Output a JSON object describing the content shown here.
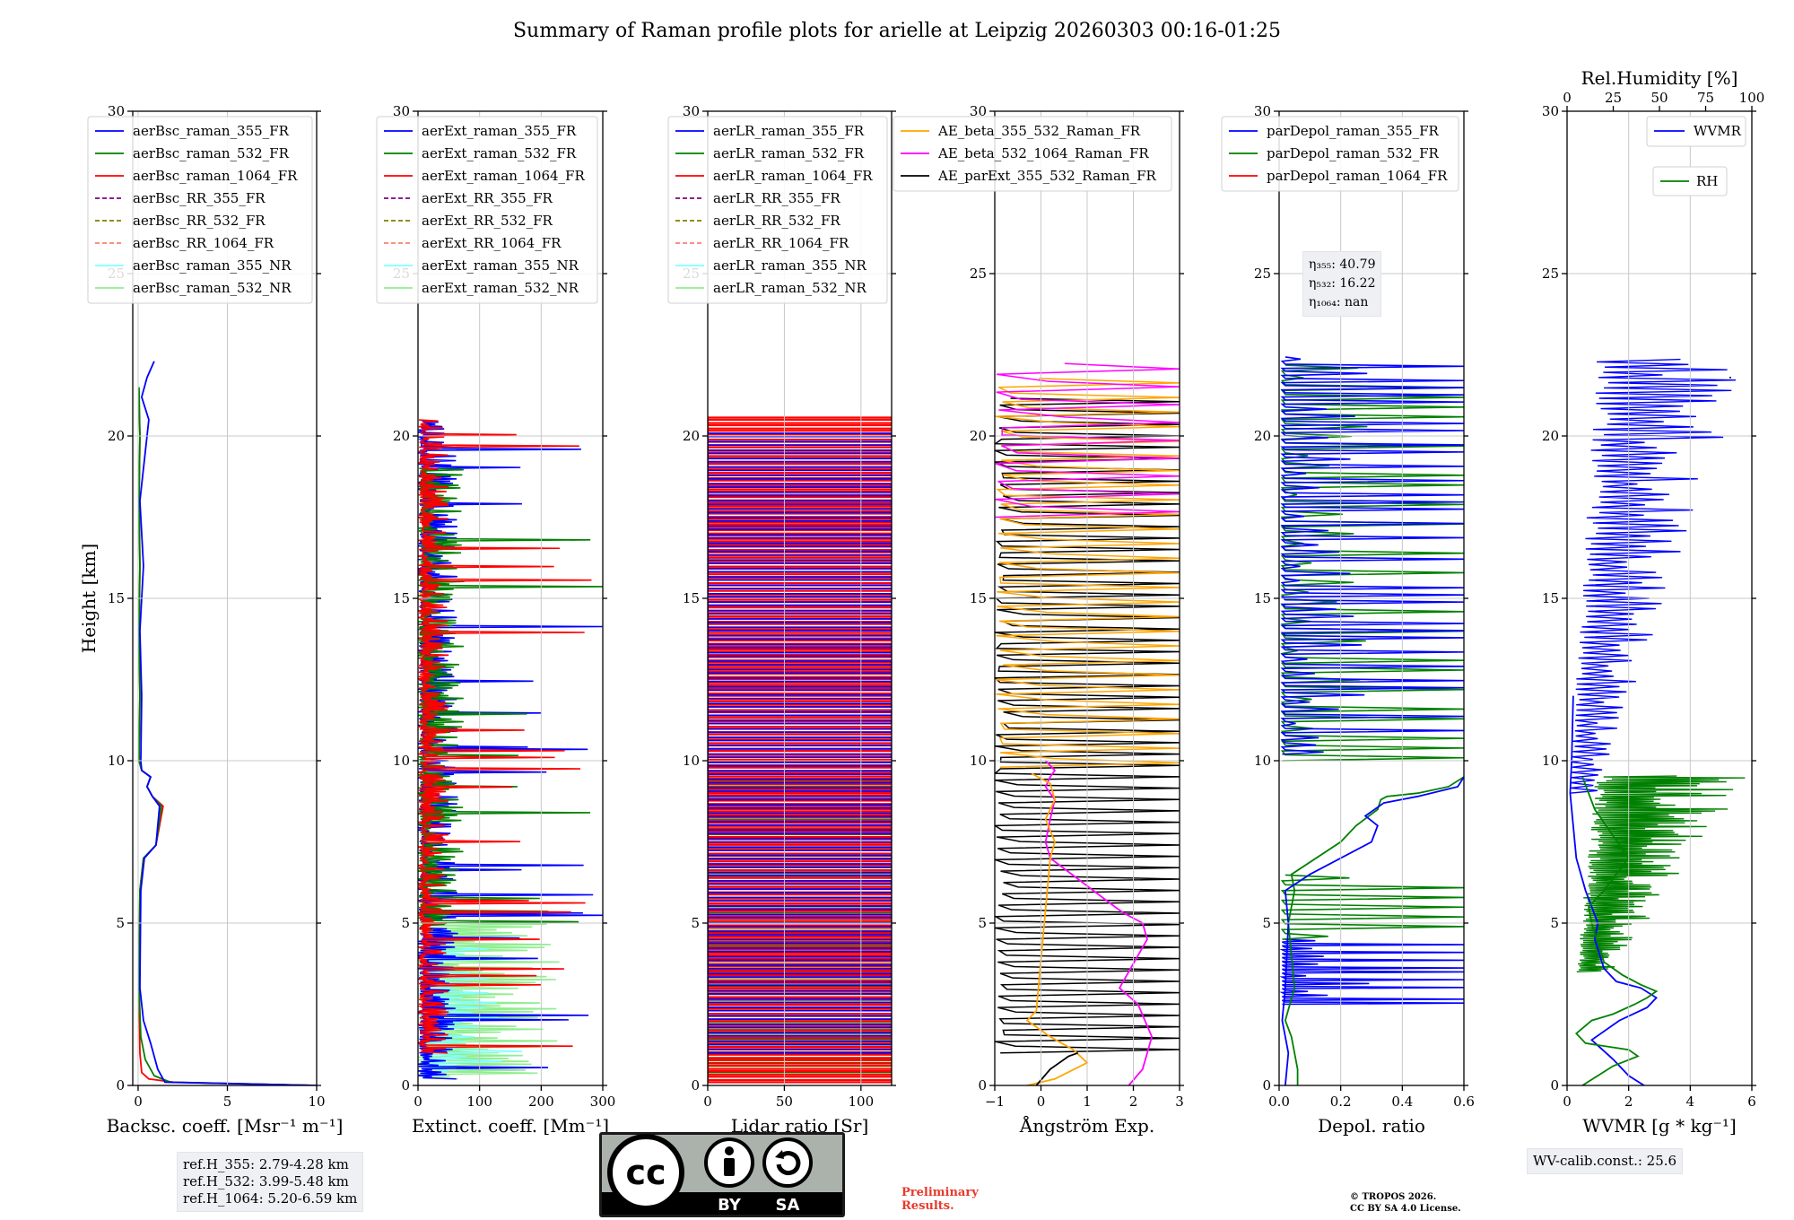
{
  "title": "Summary of Raman profile plots for arielle at Leipzig 20260303 00:16-01:25",
  "ylabel": "Height [km]",
  "colors": {
    "blue": "#0000ff",
    "green": "#008000",
    "red": "#ff0000",
    "purple": "#800080",
    "olive": "#808000",
    "salmon": "#fa8072",
    "cyan": "#80ffff",
    "lightgreen": "#90ee90",
    "orange": "#ffa500",
    "magenta": "#ff00ff",
    "black": "#000000"
  },
  "chart_data": [
    {
      "type": "line",
      "xlabel": "Backsc. coeff. [Msr⁻¹ m⁻¹]",
      "xlim": [
        -0.3,
        10
      ],
      "ylim": [
        0,
        30
      ],
      "xticks": [
        0,
        5,
        10
      ],
      "yticks": [
        0,
        5,
        10,
        15,
        20,
        25,
        30
      ],
      "legend": [
        {
          "name": "aerBsc_raman_355_FR",
          "color": "blue",
          "style": "solid"
        },
        {
          "name": "aerBsc_raman_532_FR",
          "color": "green",
          "style": "solid"
        },
        {
          "name": "aerBsc_raman_1064_FR",
          "color": "red",
          "style": "solid"
        },
        {
          "name": "aerBsc_RR_355_FR",
          "color": "purple",
          "style": "dashed"
        },
        {
          "name": "aerBsc_RR_532_FR",
          "color": "olive",
          "style": "dashed"
        },
        {
          "name": "aerBsc_RR_1064_FR",
          "color": "salmon",
          "style": "dashed"
        },
        {
          "name": "aerBsc_raman_355_NR",
          "color": "cyan",
          "style": "solid"
        },
        {
          "name": "aerBsc_raman_532_NR",
          "color": "lightgreen",
          "style": "solid"
        }
      ],
      "series": [
        {
          "name": "aerBsc_raman_1064_FR",
          "color": "red",
          "x": [
            10,
            2,
            0.6,
            0.2,
            0.1,
            0.05,
            0.1,
            0.3,
            1.0,
            1.4,
            0.8,
            0.5,
            0.7,
            0.2,
            0.05,
            0.1,
            0.05,
            0.1,
            0.05,
            0.1,
            0.05
          ],
          "y": [
            0,
            0.1,
            0.2,
            0.4,
            1,
            3,
            6,
            7,
            7.4,
            8.6,
            8.9,
            9.2,
            9.5,
            9.7,
            10,
            12,
            14,
            16,
            18,
            20,
            21
          ]
        },
        {
          "name": "aerBsc_raman_532_FR",
          "color": "green",
          "x": [
            10,
            1.8,
            0.9,
            0.4,
            0.15,
            0.05,
            0.1,
            0.3,
            1.0,
            1.3,
            0.8,
            0.5,
            0.7,
            0.2,
            0.05,
            0.1,
            0.05,
            0.1,
            0.05,
            0.1,
            0.05
          ],
          "y": [
            0,
            0.1,
            0.3,
            0.8,
            1.5,
            3,
            6,
            7,
            7.4,
            8.6,
            8.9,
            9.2,
            9.5,
            9.7,
            10,
            12,
            14,
            16,
            18,
            20,
            21.5
          ]
        },
        {
          "name": "aerBsc_raman_355_FR",
          "color": "blue",
          "x": [
            10,
            1.5,
            1.1,
            0.7,
            0.3,
            0.1,
            0.15,
            0.35,
            1.0,
            1.2,
            0.8,
            0.5,
            0.7,
            0.2,
            0.15,
            0.2,
            0.1,
            0.3,
            0.1,
            0.4,
            0.6,
            0.2,
            0.5,
            0.9
          ],
          "y": [
            0,
            0.1,
            0.5,
            1.3,
            2,
            3,
            6,
            7,
            7.4,
            8.6,
            8.9,
            9.2,
            9.5,
            9.7,
            10,
            12,
            14,
            16,
            18,
            19.5,
            20.5,
            21.2,
            21.8,
            22.3
          ]
        }
      ]
    },
    {
      "type": "line",
      "xlabel": "Extinct. coeff. [Mm⁻¹]",
      "xlim": [
        0,
        300
      ],
      "ylim": [
        0,
        30
      ],
      "xticks": [
        0,
        100,
        200,
        300
      ],
      "yticks": [
        0,
        5,
        10,
        15,
        20,
        25,
        30
      ],
      "legend": [
        {
          "name": "aerExt_raman_355_FR",
          "color": "blue",
          "style": "solid"
        },
        {
          "name": "aerExt_raman_532_FR",
          "color": "green",
          "style": "solid"
        },
        {
          "name": "aerExt_raman_1064_FR",
          "color": "red",
          "style": "solid"
        },
        {
          "name": "aerExt_RR_355_FR",
          "color": "purple",
          "style": "dashed"
        },
        {
          "name": "aerExt_RR_532_FR",
          "color": "olive",
          "style": "dashed"
        },
        {
          "name": "aerExt_RR_1064_FR",
          "color": "salmon",
          "style": "dashed"
        },
        {
          "name": "aerExt_raman_355_NR",
          "color": "cyan",
          "style": "solid"
        },
        {
          "name": "aerExt_raman_532_NR",
          "color": "lightgreen",
          "style": "solid"
        }
      ]
    },
    {
      "type": "line",
      "xlabel": "Lidar ratio [Sr]",
      "xlim": [
        0,
        120
      ],
      "ylim": [
        0,
        30
      ],
      "xticks": [
        0,
        50,
        100
      ],
      "yticks": [
        0,
        5,
        10,
        15,
        20,
        25,
        30
      ],
      "legend": [
        {
          "name": "aerLR_raman_355_FR",
          "color": "blue",
          "style": "solid"
        },
        {
          "name": "aerLR_raman_532_FR",
          "color": "green",
          "style": "solid"
        },
        {
          "name": "aerLR_raman_1064_FR",
          "color": "red",
          "style": "solid"
        },
        {
          "name": "aerLR_RR_355_FR",
          "color": "purple",
          "style": "dashed"
        },
        {
          "name": "aerLR_RR_532_FR",
          "color": "olive",
          "style": "dashed"
        },
        {
          "name": "aerLR_RR_1064_FR",
          "color": "salmon",
          "style": "dashed"
        },
        {
          "name": "aerLR_raman_355_NR",
          "color": "cyan",
          "style": "solid"
        },
        {
          "name": "aerLR_raman_532_NR",
          "color": "lightgreen",
          "style": "solid"
        }
      ]
    },
    {
      "type": "line",
      "xlabel": "Ångström Exp.",
      "xlim": [
        -1,
        3
      ],
      "ylim": [
        0,
        30
      ],
      "xticks": [
        -1,
        0,
        1,
        2,
        3
      ],
      "yticks": [
        0,
        5,
        10,
        15,
        20,
        25,
        30
      ],
      "legend": [
        {
          "name": "AE_beta_355_532_Raman_FR",
          "color": "orange",
          "style": "solid"
        },
        {
          "name": "AE_beta_532_1064_Raman_FR",
          "color": "magenta",
          "style": "solid"
        },
        {
          "name": "AE_parExt_355_532_Raman_FR",
          "color": "black",
          "style": "solid"
        }
      ],
      "series": [
        {
          "name": "AE_beta_532_1064_Raman_FR",
          "color": "magenta",
          "x": [
            1.9,
            2.2,
            2.4,
            2.1,
            1.7,
            1.9,
            2.1,
            2.3,
            2.2,
            1.8,
            1.6,
            0.2,
            0.1,
            0.2,
            0.3,
            0.1,
            0.2,
            0.3,
            0.1
          ],
          "y": [
            0,
            0.5,
            1.5,
            2.5,
            3,
            3.5,
            4,
            4.5,
            5,
            5.3,
            5.5,
            7,
            7.5,
            8.2,
            8.8,
            9.2,
            9.5,
            9.7,
            10
          ]
        },
        {
          "name": "AE_beta_355_532_Raman_FR",
          "color": "orange",
          "x": [
            -0.3,
            0.3,
            1.0,
            0.7,
            0.2,
            -0.3,
            -0.1,
            0.2,
            0.3,
            0.1,
            0.3,
            0.2,
            -0.2
          ],
          "y": [
            0,
            0.2,
            0.7,
            1.1,
            1.5,
            2.0,
            2.3,
            7.0,
            7.5,
            8.2,
            8.8,
            9.3,
            9.6
          ]
        },
        {
          "name": "AE_parExt_355_532_Raman_FR",
          "color": "black",
          "x": [
            -0.1,
            0.2,
            0.6,
            0.8
          ],
          "y": [
            0,
            0.5,
            0.9,
            1.0
          ]
        }
      ]
    },
    {
      "type": "line",
      "xlabel": "Depol. ratio",
      "xlim": [
        0,
        0.6
      ],
      "ylim": [
        0,
        30
      ],
      "xticks": [
        0.0,
        0.2,
        0.4,
        0.6
      ],
      "yticks": [
        0,
        5,
        10,
        15,
        20,
        25,
        30
      ],
      "legend": [
        {
          "name": "parDepol_raman_355_FR",
          "color": "blue",
          "style": "solid"
        },
        {
          "name": "parDepol_raman_532_FR",
          "color": "green",
          "style": "solid"
        },
        {
          "name": "parDepol_raman_1064_FR",
          "color": "red",
          "style": "solid"
        }
      ],
      "series": [
        {
          "name": "parDepol_raman_532_FR",
          "color": "green",
          "x": [
            0.06,
            0.06,
            0.05,
            0.04,
            0.02,
            0.05,
            0.04,
            0.03,
            0.05,
            0.04,
            0.2,
            0.25,
            0.32,
            0.33,
            0.35,
            0.45,
            0.55,
            0.6
          ],
          "y": [
            0,
            0.5,
            1,
            1.5,
            2,
            3,
            4,
            5,
            6,
            6.5,
            7.5,
            8.0,
            8.5,
            8.8,
            8.9,
            9.0,
            9.2,
            9.5
          ]
        },
        {
          "name": "parDepol_raman_355_FR",
          "color": "blue",
          "x": [
            0.02,
            0.03,
            0.01,
            0.02,
            0.03,
            0.02,
            0.1,
            0.3,
            0.32,
            0.28,
            0.34,
            0.45,
            0.58,
            0.6
          ],
          "y": [
            0,
            1,
            2,
            3,
            5,
            6,
            6.5,
            7.5,
            8,
            8.3,
            8.7,
            8.9,
            9.2,
            9.5
          ]
        }
      ],
      "annotation": [
        "η₃₅₅: 40.79",
        "η₅₃₂: 16.22",
        "η₁₀₆₄: nan"
      ]
    },
    {
      "type": "line",
      "xlabel": "WVMR [g * kg⁻¹]",
      "xlim": [
        0,
        6
      ],
      "ylim": [
        0,
        30
      ],
      "xticks": [
        0,
        2,
        4,
        6
      ],
      "yticks": [
        0,
        5,
        10,
        15,
        20,
        25,
        30
      ],
      "top_xlabel": "Rel.Humidity [%]",
      "top_xlim": [
        0,
        100
      ],
      "top_xticks": [
        0,
        25,
        50,
        75,
        100
      ],
      "legend": [
        {
          "name": "WVMR",
          "color": "blue",
          "style": "solid"
        },
        {
          "name": "RH",
          "color": "green",
          "style": "solid"
        }
      ],
      "series": [
        {
          "name": "WVMR",
          "color": "blue",
          "x": [
            2.5,
            2.0,
            1.5,
            0.8,
            1.7,
            2.6,
            2.9,
            2.4,
            1.6,
            1.2,
            0.9,
            1.0,
            0.6,
            0.3,
            0.2,
            0.1,
            0.15,
            0.2
          ],
          "y": [
            0,
            0.3,
            0.8,
            1.4,
            2.0,
            2.4,
            2.7,
            3.0,
            3.2,
            3.6,
            4.5,
            5.0,
            6.0,
            7.0,
            8.0,
            9.0,
            10.0,
            12.0
          ]
        },
        {
          "name": "RH",
          "color": "green",
          "x": [
            0.5,
            1.0,
            1.5,
            2.3,
            2.0,
            0.6,
            0.3,
            0.8,
            1.5,
            2.2,
            2.6,
            2.9,
            2.4,
            1.8,
            1.2,
            1.0,
            0.8,
            0.7,
            1.2,
            2.0,
            0.9,
            0.5
          ],
          "y": [
            0,
            0.3,
            0.6,
            0.9,
            1.1,
            1.3,
            1.6,
            2.0,
            2.2,
            2.5,
            2.7,
            2.9,
            3.1,
            3.4,
            3.8,
            4.4,
            5.0,
            5.5,
            6.0,
            7.0,
            8.5,
            9.5
          ]
        }
      ],
      "calib": "WV-calib.const.: 25.6"
    }
  ],
  "refbox": [
    "ref.H_355: 2.79-4.28 km",
    "ref.H_532: 3.99-5.48 km",
    "ref.H_1064: 5.20-6.59 km"
  ],
  "license": {
    "cc": "cc",
    "by": "BY",
    "sa": "SA"
  },
  "preliminary": [
    "Preliminary",
    "Results."
  ],
  "copyright": [
    "© TROPOS 2026.",
    "CC BY SA 4.0 License."
  ]
}
